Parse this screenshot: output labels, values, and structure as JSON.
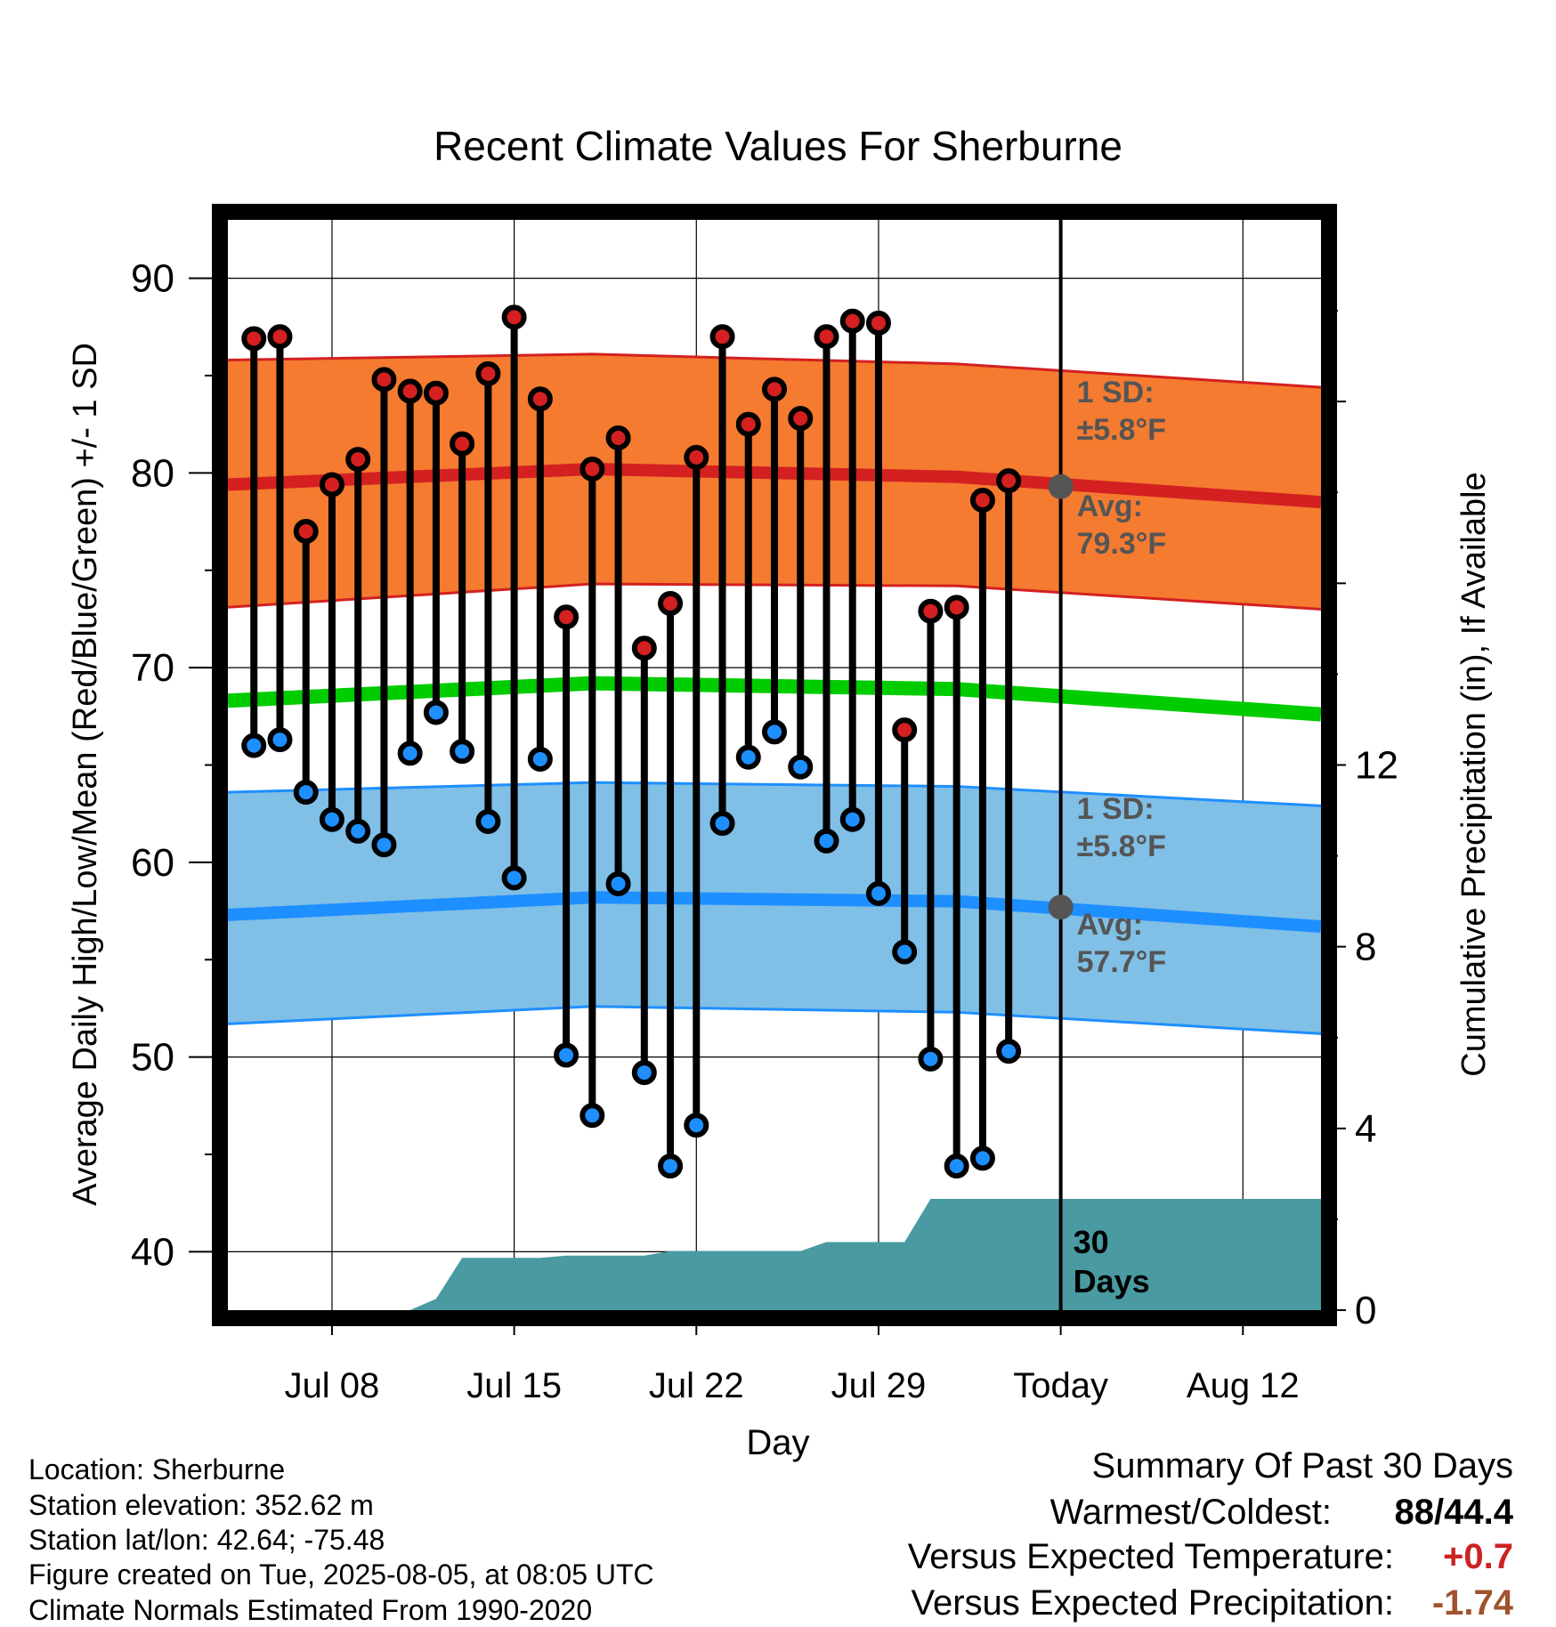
{
  "chart_data": {
    "type": "line",
    "title": "Recent Climate Values For Sherburne",
    "xlabel": "Day",
    "ylabel": "Average Daily High/Low/Mean (Red/Blue/Green) +/- 1 SD",
    "y2label": "Cumulative Precipitation (in), If Available",
    "ylim": [
      37,
      93
    ],
    "y2lim": [
      0,
      24
    ],
    "y_ticks": [
      40,
      50,
      60,
      70,
      80,
      90
    ],
    "y2_ticks": [
      0,
      4,
      8,
      12
    ],
    "x_range_days": [
      "2025-07-04",
      "2025-08-15"
    ],
    "x_ticks": [
      {
        "date": "2025-07-08",
        "label": "Jul 08"
      },
      {
        "date": "2025-07-15",
        "label": "Jul 15"
      },
      {
        "date": "2025-07-22",
        "label": "Jul 22"
      },
      {
        "date": "2025-07-29",
        "label": "Jul 29"
      },
      {
        "date": "2025-08-05",
        "label": "Today"
      },
      {
        "date": "2025-08-12",
        "label": "Aug 12"
      }
    ],
    "today": "2025-08-05",
    "grid": true,
    "colors": {
      "high": "#d42020",
      "low": "#1e8fff",
      "mean": "#00cc00",
      "high_band": "#f47b30",
      "low_band": "#80bfe6",
      "precip": "#4a9aa2",
      "marker_today": "#555555"
    },
    "dates": [
      "2025-07-05",
      "2025-07-06",
      "2025-07-07",
      "2025-07-08",
      "2025-07-09",
      "2025-07-10",
      "2025-07-11",
      "2025-07-12",
      "2025-07-13",
      "2025-07-14",
      "2025-07-15",
      "2025-07-16",
      "2025-07-17",
      "2025-07-18",
      "2025-07-19",
      "2025-07-20",
      "2025-07-21",
      "2025-07-22",
      "2025-07-23",
      "2025-07-24",
      "2025-07-25",
      "2025-07-26",
      "2025-07-27",
      "2025-07-28",
      "2025-07-29",
      "2025-07-30",
      "2025-07-31",
      "2025-08-01",
      "2025-08-02",
      "2025-08-03",
      "2025-08-04"
    ],
    "series": [
      {
        "name": "High",
        "values": [
          86.9,
          87.0,
          77.0,
          79.4,
          80.7,
          84.8,
          84.2,
          84.1,
          81.5,
          85.1,
          88.0,
          83.8,
          72.6,
          80.2,
          81.8,
          71.0,
          73.3,
          80.8,
          87.0,
          82.5,
          84.3,
          82.8,
          87.0,
          87.8,
          87.7,
          66.8,
          72.9,
          73.1,
          78.6,
          79.6,
          null
        ]
      },
      {
        "name": "Low",
        "values": [
          66.0,
          66.3,
          63.6,
          62.2,
          61.6,
          60.9,
          65.6,
          67.7,
          65.7,
          62.1,
          59.2,
          65.3,
          50.1,
          47.0,
          58.9,
          49.2,
          44.4,
          46.5,
          62.0,
          65.4,
          66.7,
          64.9,
          61.1,
          62.2,
          58.4,
          55.4,
          49.9,
          44.4,
          44.8,
          50.3,
          null
        ]
      }
    ],
    "normals": {
      "dates": [
        "2025-07-04",
        "2025-07-18",
        "2025-08-01",
        "2025-08-15"
      ],
      "high_avg": [
        79.4,
        80.2,
        79.8,
        78.5
      ],
      "high_upper": [
        85.8,
        86.1,
        85.6,
        84.4
      ],
      "high_lower": [
        73.1,
        74.3,
        74.2,
        73.0
      ],
      "mean_avg": [
        68.3,
        69.2,
        68.9,
        67.6
      ],
      "low_avg": [
        57.3,
        58.2,
        58.0,
        56.7
      ],
      "low_upper": [
        63.6,
        64.1,
        63.9,
        62.9
      ],
      "low_lower": [
        51.7,
        52.6,
        52.3,
        51.2
      ]
    },
    "precipitation": {
      "dates": [
        "2025-07-04",
        "2025-07-10",
        "2025-07-11",
        "2025-07-12",
        "2025-07-13",
        "2025-07-14",
        "2025-07-15",
        "2025-07-16",
        "2025-07-17",
        "2025-07-18",
        "2025-07-19",
        "2025-07-20",
        "2025-07-21",
        "2025-07-22",
        "2025-07-23",
        "2025-07-24",
        "2025-07-25",
        "2025-07-26",
        "2025-07-27",
        "2025-07-28",
        "2025-07-29",
        "2025-07-30",
        "2025-07-31",
        "2025-08-01",
        "2025-08-15"
      ],
      "values": [
        0,
        0,
        0,
        0.25,
        1.15,
        1.15,
        1.15,
        1.15,
        1.2,
        1.2,
        1.2,
        1.2,
        1.3,
        1.3,
        1.3,
        1.3,
        1.3,
        1.3,
        1.5,
        1.5,
        1.5,
        1.5,
        2.45,
        2.45,
        2.45
      ]
    },
    "annotations": {
      "high_sd_label": "1 SD:",
      "high_sd_value": "±5.8°F",
      "high_avg_label": "Avg:",
      "high_avg_value": "79.3°F",
      "high_avg_today": 79.3,
      "low_sd_label": "1 SD:",
      "low_sd_value": "±5.8°F",
      "low_avg_label": "Avg:",
      "low_avg_value": "57.7°F",
      "low_avg_today": 57.7,
      "days_label": "30",
      "days_label2": "Days"
    }
  },
  "info": {
    "location": "Location: Sherburne",
    "elevation": "Station elevation: 352.62 m",
    "latlon": "Station lat/lon: 42.64; -75.48",
    "created": "Figure created on Tue, 2025-08-05, at 08:05 UTC",
    "normals": "Climate Normals Estimated From 1990-2020"
  },
  "summary": {
    "title": "Summary Of Past 30 Days",
    "warmest_label": "Warmest/Coldest:",
    "warmest_value": "88",
    "coldest_value": "/44.4",
    "temp_label": "Versus Expected Temperature:",
    "temp_value": "+0.7",
    "temp_color": "#cc2222",
    "precip_label": "Versus Expected Precipitation:",
    "precip_value": "-1.74",
    "precip_color": "#a0522d"
  }
}
